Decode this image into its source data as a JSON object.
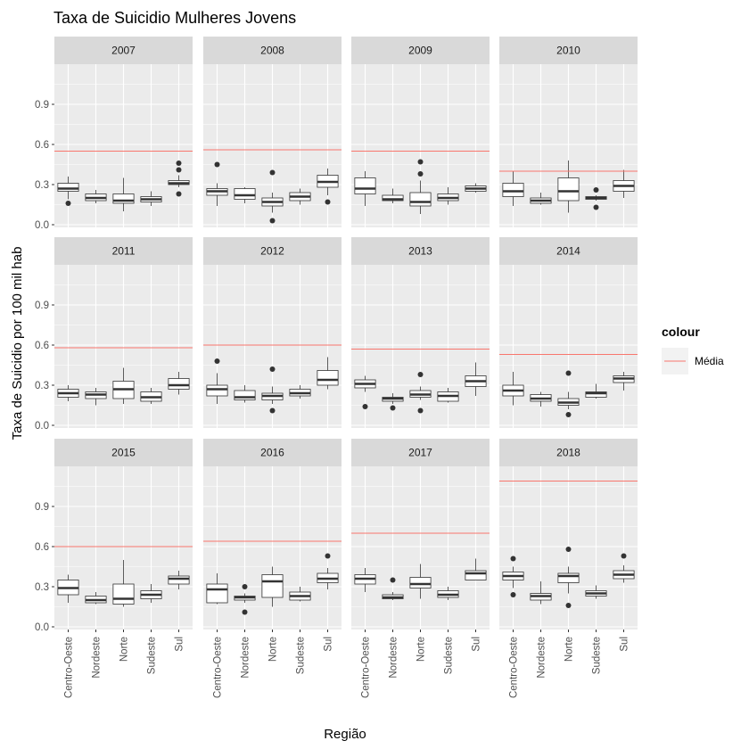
{
  "chart_data": {
    "type": "boxplot",
    "title": "Taxa de Suicidio Mulheres Jovens",
    "xlabel": "Região",
    "ylabel": "Taxa de Suicidio por 100 mil hab",
    "categories": [
      "Centro-Oeste",
      "Nordeste",
      "Norte",
      "Sudeste",
      "Sul"
    ],
    "y_ticks": [
      "0.0",
      "0.3",
      "0.6",
      "0.9"
    ],
    "ylim": [
      -0.02,
      1.2
    ],
    "grid": true,
    "legend": {
      "title": "colour",
      "items": [
        {
          "label": "Média",
          "color": "#F8766D"
        }
      ],
      "position": "right"
    },
    "colors": {
      "mean_line": "#F8766D",
      "panel": "#EBEBEB",
      "strip": "#D9D9D9",
      "box_outline": "#333333"
    },
    "facets": [
      {
        "year": "2007",
        "mean": 0.55,
        "boxes": [
          {
            "category": "Centro-Oeste",
            "min": 0.19,
            "q1": 0.25,
            "median": 0.27,
            "q3": 0.31,
            "max": 0.36,
            "outliers": [
              0.16
            ]
          },
          {
            "category": "Nordeste",
            "min": 0.16,
            "q1": 0.18,
            "median": 0.2,
            "q3": 0.23,
            "max": 0.26,
            "outliers": []
          },
          {
            "category": "Norte",
            "min": 0.1,
            "q1": 0.16,
            "median": 0.18,
            "q3": 0.23,
            "max": 0.35,
            "outliers": []
          },
          {
            "category": "Sudeste",
            "min": 0.14,
            "q1": 0.17,
            "median": 0.19,
            "q3": 0.21,
            "max": 0.25,
            "outliers": []
          },
          {
            "category": "Sul",
            "min": 0.28,
            "q1": 0.3,
            "median": 0.31,
            "q3": 0.33,
            "max": 0.37,
            "outliers": [
              0.23,
              0.41,
              0.46
            ]
          }
        ]
      },
      {
        "year": "2008",
        "mean": 0.56,
        "boxes": [
          {
            "category": "Centro-Oeste",
            "min": 0.14,
            "q1": 0.22,
            "median": 0.25,
            "q3": 0.27,
            "max": 0.31,
            "outliers": [
              0.45
            ]
          },
          {
            "category": "Nordeste",
            "min": 0.16,
            "q1": 0.19,
            "median": 0.22,
            "q3": 0.27,
            "max": 0.28,
            "outliers": []
          },
          {
            "category": "Norte",
            "min": 0.09,
            "q1": 0.14,
            "median": 0.17,
            "q3": 0.2,
            "max": 0.24,
            "outliers": [
              0.03,
              0.39
            ]
          },
          {
            "category": "Sudeste",
            "min": 0.15,
            "q1": 0.18,
            "median": 0.21,
            "q3": 0.24,
            "max": 0.27,
            "outliers": []
          },
          {
            "category": "Sul",
            "min": 0.22,
            "q1": 0.28,
            "median": 0.32,
            "q3": 0.37,
            "max": 0.42,
            "outliers": [
              0.17
            ]
          }
        ]
      },
      {
        "year": "2009",
        "mean": 0.55,
        "boxes": [
          {
            "category": "Centro-Oeste",
            "min": 0.14,
            "q1": 0.23,
            "median": 0.27,
            "q3": 0.35,
            "max": 0.4,
            "outliers": []
          },
          {
            "category": "Nordeste",
            "min": 0.16,
            "q1": 0.18,
            "median": 0.19,
            "q3": 0.22,
            "max": 0.27,
            "outliers": []
          },
          {
            "category": "Norte",
            "min": 0.08,
            "q1": 0.14,
            "median": 0.17,
            "q3": 0.24,
            "max": 0.33,
            "outliers": [
              0.38,
              0.47
            ]
          },
          {
            "category": "Sudeste",
            "min": 0.15,
            "q1": 0.18,
            "median": 0.2,
            "q3": 0.23,
            "max": 0.28,
            "outliers": []
          },
          {
            "category": "Sul",
            "min": 0.24,
            "q1": 0.25,
            "median": 0.27,
            "q3": 0.29,
            "max": 0.31,
            "outliers": []
          }
        ]
      },
      {
        "year": "2010",
        "mean": 0.4,
        "boxes": [
          {
            "category": "Centro-Oeste",
            "min": 0.14,
            "q1": 0.21,
            "median": 0.25,
            "q3": 0.31,
            "max": 0.4,
            "outliers": []
          },
          {
            "category": "Nordeste",
            "min": 0.15,
            "q1": 0.16,
            "median": 0.18,
            "q3": 0.2,
            "max": 0.24,
            "outliers": []
          },
          {
            "category": "Norte",
            "min": 0.09,
            "q1": 0.18,
            "median": 0.25,
            "q3": 0.35,
            "max": 0.48,
            "outliers": []
          },
          {
            "category": "Sudeste",
            "min": 0.18,
            "q1": 0.19,
            "median": 0.2,
            "q3": 0.21,
            "max": 0.22,
            "outliers": [
              0.13,
              0.26
            ]
          },
          {
            "category": "Sul",
            "min": 0.2,
            "q1": 0.25,
            "median": 0.29,
            "q3": 0.33,
            "max": 0.41,
            "outliers": []
          }
        ]
      },
      {
        "year": "2011",
        "mean": 0.58,
        "boxes": [
          {
            "category": "Centro-Oeste",
            "min": 0.18,
            "q1": 0.21,
            "median": 0.24,
            "q3": 0.27,
            "max": 0.3,
            "outliers": []
          },
          {
            "category": "Nordeste",
            "min": 0.15,
            "q1": 0.2,
            "median": 0.23,
            "q3": 0.25,
            "max": 0.28,
            "outliers": []
          },
          {
            "category": "Norte",
            "min": 0.16,
            "q1": 0.2,
            "median": 0.27,
            "q3": 0.33,
            "max": 0.43,
            "outliers": []
          },
          {
            "category": "Sudeste",
            "min": 0.16,
            "q1": 0.18,
            "median": 0.21,
            "q3": 0.25,
            "max": 0.28,
            "outliers": []
          },
          {
            "category": "Sul",
            "min": 0.23,
            "q1": 0.27,
            "median": 0.3,
            "q3": 0.35,
            "max": 0.4,
            "outliers": []
          }
        ]
      },
      {
        "year": "2012",
        "mean": 0.6,
        "boxes": [
          {
            "category": "Centro-Oeste",
            "min": 0.16,
            "q1": 0.22,
            "median": 0.27,
            "q3": 0.3,
            "max": 0.39,
            "outliers": [
              0.48
            ]
          },
          {
            "category": "Nordeste",
            "min": 0.17,
            "q1": 0.19,
            "median": 0.21,
            "q3": 0.26,
            "max": 0.3,
            "outliers": []
          },
          {
            "category": "Norte",
            "min": 0.16,
            "q1": 0.19,
            "median": 0.22,
            "q3": 0.24,
            "max": 0.29,
            "outliers": [
              0.11,
              0.42
            ]
          },
          {
            "category": "Sudeste",
            "min": 0.2,
            "q1": 0.22,
            "median": 0.24,
            "q3": 0.27,
            "max": 0.3,
            "outliers": []
          },
          {
            "category": "Sul",
            "min": 0.27,
            "q1": 0.3,
            "median": 0.34,
            "q3": 0.41,
            "max": 0.51,
            "outliers": []
          }
        ]
      },
      {
        "year": "2013",
        "mean": 0.57,
        "boxes": [
          {
            "category": "Centro-Oeste",
            "min": 0.25,
            "q1": 0.28,
            "median": 0.31,
            "q3": 0.34,
            "max": 0.37,
            "outliers": [
              0.14
            ]
          },
          {
            "category": "Nordeste",
            "min": 0.16,
            "q1": 0.18,
            "median": 0.2,
            "q3": 0.21,
            "max": 0.24,
            "outliers": [
              0.13
            ]
          },
          {
            "category": "Norte",
            "min": 0.19,
            "q1": 0.21,
            "median": 0.23,
            "q3": 0.26,
            "max": 0.29,
            "outliers": [
              0.11,
              0.38
            ]
          },
          {
            "category": "Sudeste",
            "min": 0.17,
            "q1": 0.18,
            "median": 0.22,
            "q3": 0.25,
            "max": 0.28,
            "outliers": []
          },
          {
            "category": "Sul",
            "min": 0.22,
            "q1": 0.29,
            "median": 0.33,
            "q3": 0.37,
            "max": 0.47,
            "outliers": []
          }
        ]
      },
      {
        "year": "2014",
        "mean": 0.53,
        "boxes": [
          {
            "category": "Centro-Oeste",
            "min": 0.15,
            "q1": 0.22,
            "median": 0.26,
            "q3": 0.3,
            "max": 0.4,
            "outliers": []
          },
          {
            "category": "Nordeste",
            "min": 0.14,
            "q1": 0.18,
            "median": 0.2,
            "q3": 0.23,
            "max": 0.25,
            "outliers": []
          },
          {
            "category": "Norte",
            "min": 0.12,
            "q1": 0.15,
            "median": 0.17,
            "q3": 0.2,
            "max": 0.25,
            "outliers": [
              0.08,
              0.39
            ]
          },
          {
            "category": "Sudeste",
            "min": 0.2,
            "q1": 0.21,
            "median": 0.24,
            "q3": 0.25,
            "max": 0.31,
            "outliers": []
          },
          {
            "category": "Sul",
            "min": 0.26,
            "q1": 0.32,
            "median": 0.35,
            "q3": 0.37,
            "max": 0.4,
            "outliers": []
          }
        ]
      },
      {
        "year": "2015",
        "mean": 0.6,
        "boxes": [
          {
            "category": "Centro-Oeste",
            "min": 0.18,
            "q1": 0.24,
            "median": 0.29,
            "q3": 0.35,
            "max": 0.39,
            "outliers": []
          },
          {
            "category": "Nordeste",
            "min": 0.17,
            "q1": 0.18,
            "median": 0.2,
            "q3": 0.23,
            "max": 0.26,
            "outliers": []
          },
          {
            "category": "Norte",
            "min": 0.15,
            "q1": 0.17,
            "median": 0.21,
            "q3": 0.32,
            "max": 0.5,
            "outliers": []
          },
          {
            "category": "Sudeste",
            "min": 0.18,
            "q1": 0.21,
            "median": 0.24,
            "q3": 0.27,
            "max": 0.32,
            "outliers": []
          },
          {
            "category": "Sul",
            "min": 0.28,
            "q1": 0.32,
            "median": 0.36,
            "q3": 0.38,
            "max": 0.42,
            "outliers": []
          }
        ]
      },
      {
        "year": "2016",
        "mean": 0.64,
        "boxes": [
          {
            "category": "Centro-Oeste",
            "min": 0.17,
            "q1": 0.18,
            "median": 0.28,
            "q3": 0.32,
            "max": 0.4,
            "outliers": []
          },
          {
            "category": "Nordeste",
            "min": 0.18,
            "q1": 0.2,
            "median": 0.22,
            "q3": 0.23,
            "max": 0.25,
            "outliers": [
              0.11,
              0.3
            ]
          },
          {
            "category": "Norte",
            "min": 0.15,
            "q1": 0.22,
            "median": 0.34,
            "q3": 0.39,
            "max": 0.45,
            "outliers": []
          },
          {
            "category": "Sudeste",
            "min": 0.19,
            "q1": 0.2,
            "median": 0.23,
            "q3": 0.26,
            "max": 0.3,
            "outliers": []
          },
          {
            "category": "Sul",
            "min": 0.28,
            "q1": 0.33,
            "median": 0.36,
            "q3": 0.4,
            "max": 0.44,
            "outliers": [
              0.53
            ]
          }
        ]
      },
      {
        "year": "2017",
        "mean": 0.7,
        "boxes": [
          {
            "category": "Centro-Oeste",
            "min": 0.26,
            "q1": 0.32,
            "median": 0.36,
            "q3": 0.39,
            "max": 0.44,
            "outliers": []
          },
          {
            "category": "Nordeste",
            "min": 0.2,
            "q1": 0.21,
            "median": 0.22,
            "q3": 0.24,
            "max": 0.26,
            "outliers": [
              0.35
            ]
          },
          {
            "category": "Norte",
            "min": 0.21,
            "q1": 0.29,
            "median": 0.32,
            "q3": 0.37,
            "max": 0.47,
            "outliers": []
          },
          {
            "category": "Sudeste",
            "min": 0.2,
            "q1": 0.22,
            "median": 0.24,
            "q3": 0.27,
            "max": 0.3,
            "outliers": []
          },
          {
            "category": "Sul",
            "min": 0.35,
            "q1": 0.35,
            "median": 0.4,
            "q3": 0.42,
            "max": 0.51,
            "outliers": []
          }
        ]
      },
      {
        "year": "2018",
        "mean": 1.09,
        "boxes": [
          {
            "category": "Centro-Oeste",
            "min": 0.29,
            "q1": 0.35,
            "median": 0.38,
            "q3": 0.41,
            "max": 0.45,
            "outliers": [
              0.24,
              0.51
            ]
          },
          {
            "category": "Nordeste",
            "min": 0.17,
            "q1": 0.2,
            "median": 0.23,
            "q3": 0.25,
            "max": 0.34,
            "outliers": []
          },
          {
            "category": "Norte",
            "min": 0.25,
            "q1": 0.33,
            "median": 0.38,
            "q3": 0.4,
            "max": 0.45,
            "outliers": [
              0.16,
              0.58
            ]
          },
          {
            "category": "Sudeste",
            "min": 0.21,
            "q1": 0.23,
            "median": 0.25,
            "q3": 0.27,
            "max": 0.31,
            "outliers": []
          },
          {
            "category": "Sul",
            "min": 0.33,
            "q1": 0.36,
            "median": 0.39,
            "q3": 0.42,
            "max": 0.46,
            "outliers": [
              0.53
            ]
          }
        ]
      }
    ]
  }
}
